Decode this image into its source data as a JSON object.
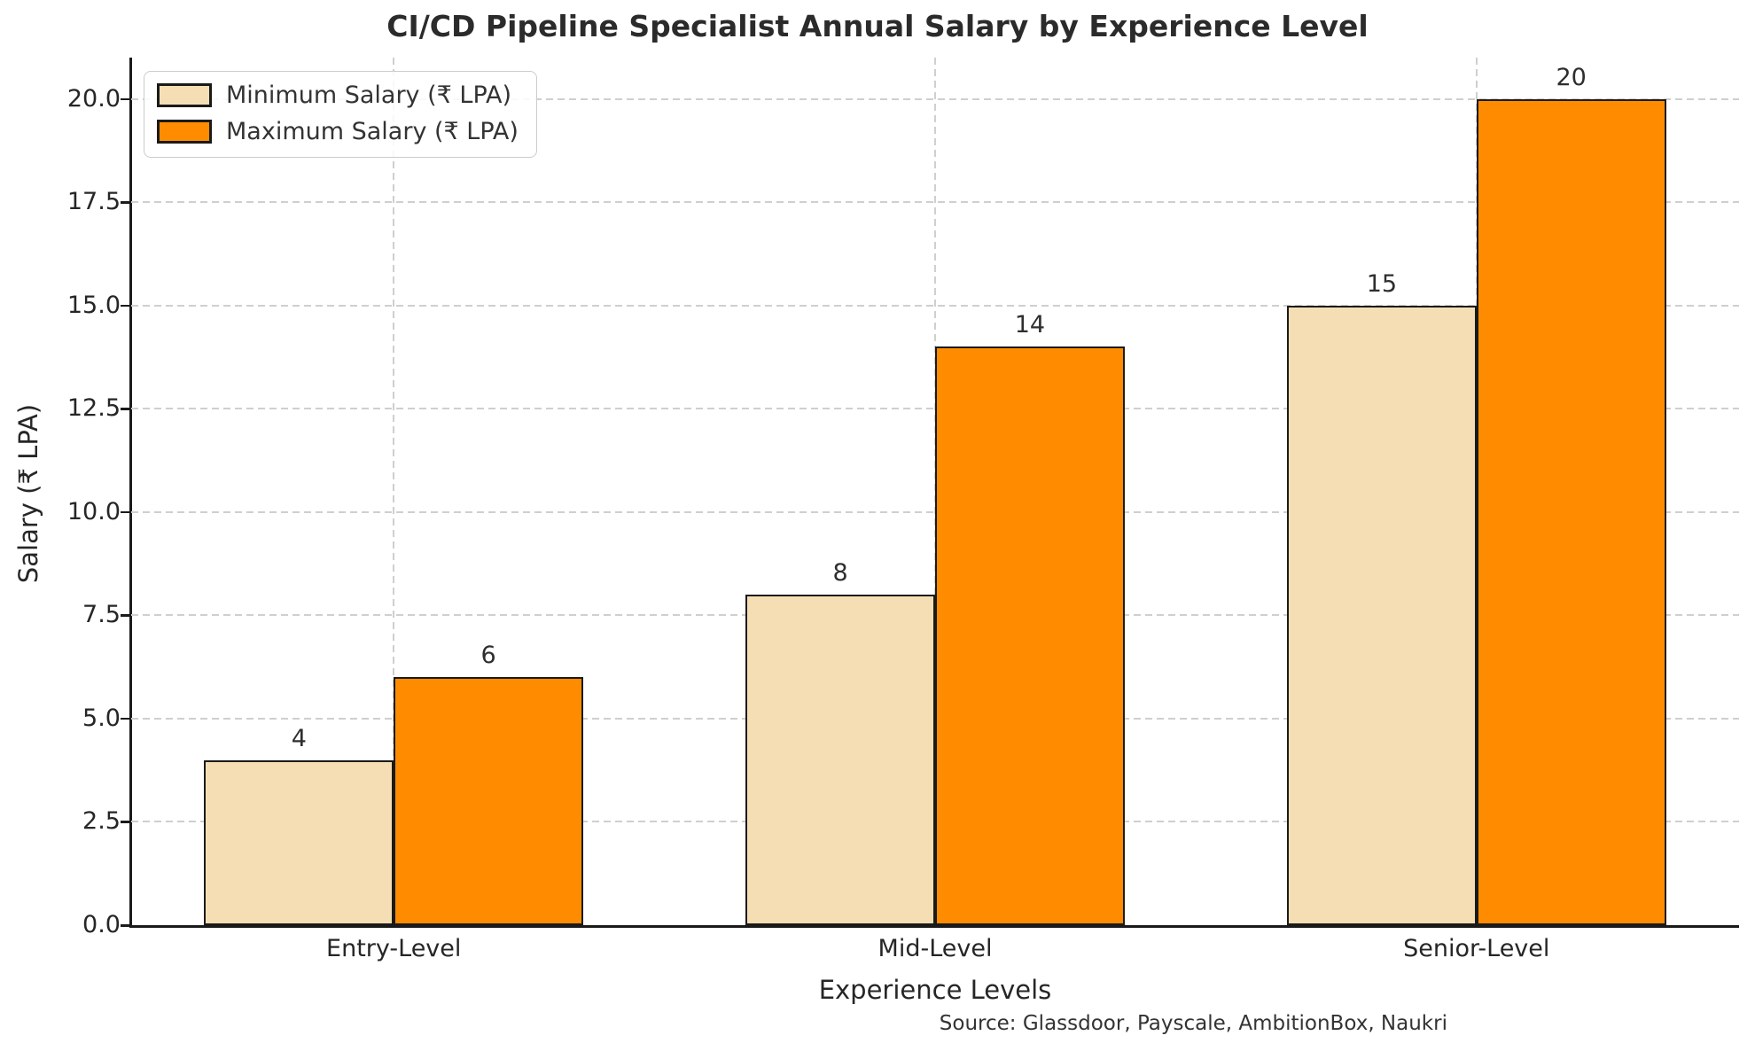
{
  "chart_data": {
    "type": "bar",
    "title": "CI/CD Pipeline Specialist Annual Salary by Experience Level",
    "xlabel": "Experience Levels",
    "ylabel": "Salary (₹ LPA)",
    "source_note": "Source: Glassdoor, Payscale, AmbitionBox, Naukri",
    "categories": [
      "Entry-Level",
      "Mid-Level",
      "Senior-Level"
    ],
    "series": [
      {
        "name": "Minimum Salary (₹ LPA)",
        "values": [
          4,
          8,
          15
        ],
        "color": "#F5DEB3"
      },
      {
        "name": "Maximum Salary (₹ LPA)",
        "values": [
          6,
          14,
          20
        ],
        "color": "#FF8C00"
      }
    ],
    "bar_value_labels": [
      [
        "4",
        "8",
        "15"
      ],
      [
        "6",
        "14",
        "20"
      ]
    ],
    "ylim": [
      0,
      21
    ],
    "yticks": [
      0.0,
      2.5,
      5.0,
      7.5,
      10.0,
      12.5,
      15.0,
      17.5,
      20.0
    ],
    "ytick_labels": [
      "0.0",
      "2.5",
      "5.0",
      "7.5",
      "10.0",
      "12.5",
      "15.0",
      "17.5",
      "20.0"
    ],
    "grid": true,
    "grid_style": "dashed",
    "grid_color": "#cfcfcf",
    "bar_edge_color": "#1a1a1a",
    "legend_position": "upper left"
  }
}
